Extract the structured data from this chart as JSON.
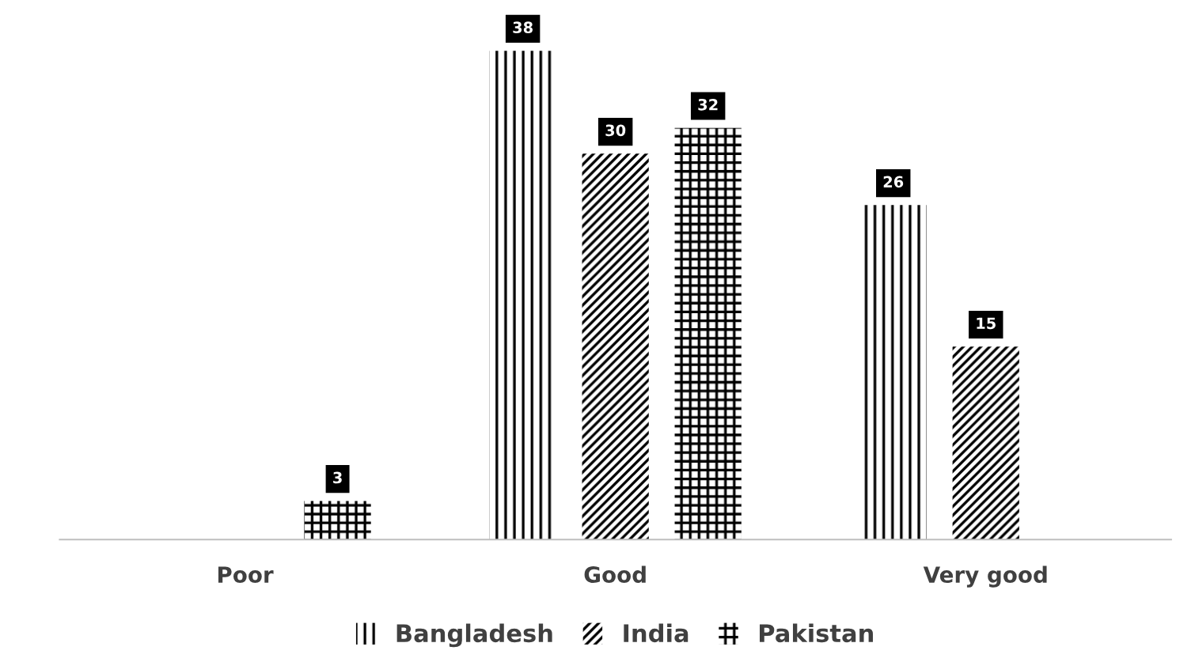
{
  "chart_data": {
    "type": "bar",
    "categories": [
      "Poor",
      "Good",
      "Very good"
    ],
    "series": [
      {
        "name": "Bangladesh",
        "color": "#ffffff",
        "values": [
          null,
          38,
          26
        ]
      },
      {
        "name": "India",
        "color": "#ffffff",
        "values": [
          null,
          30,
          15
        ]
      },
      {
        "name": "Pakistan",
        "color": "#ffffff",
        "values": [
          3,
          32,
          null
        ]
      }
    ],
    "data_labels": true,
    "legend": "bottom",
    "grid": false
  }
}
